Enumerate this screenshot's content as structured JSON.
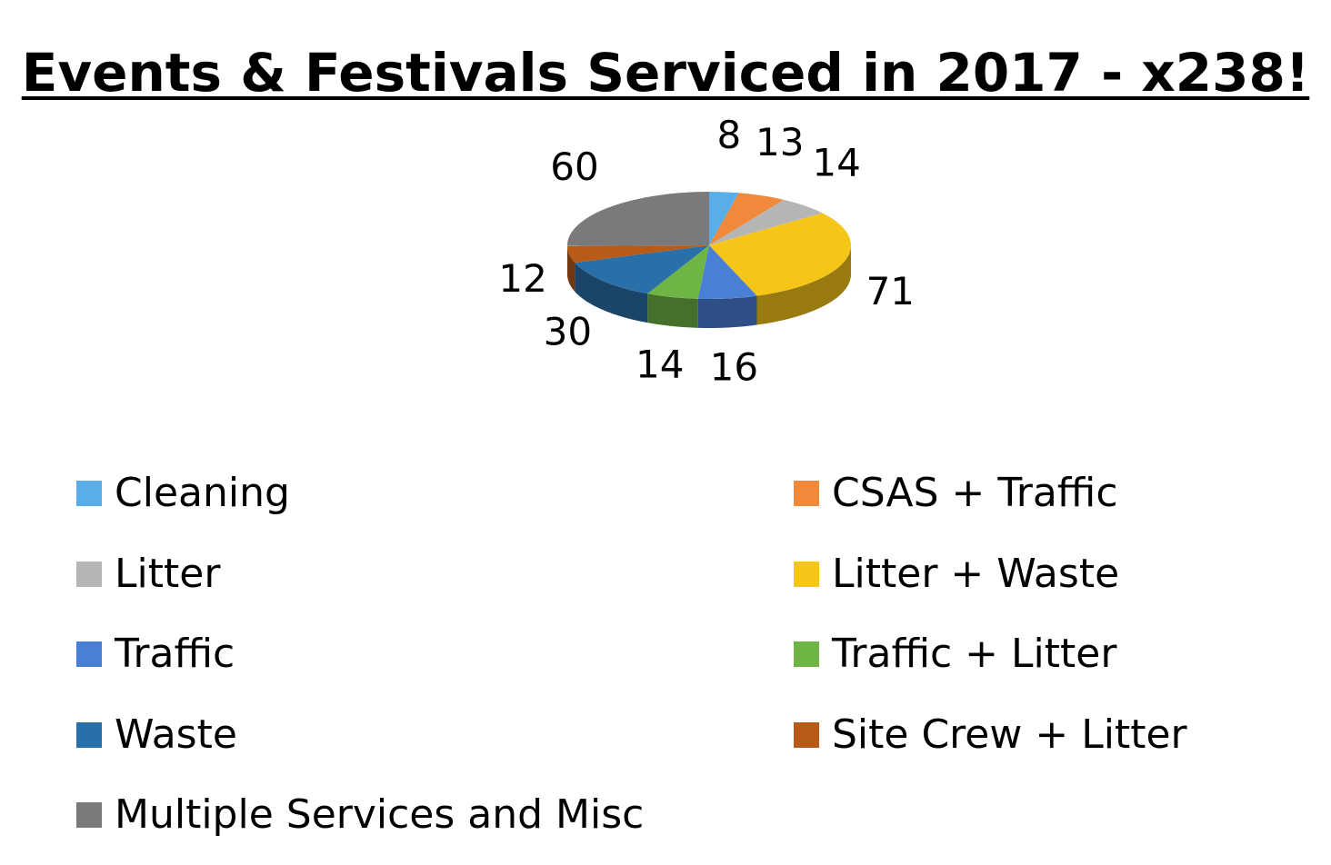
{
  "chart_data": {
    "type": "pie",
    "title": "Events & Festivals Serviced in 2017 - x238!",
    "categories": [
      "Cleaning",
      "CSAS + Traffic",
      "Litter",
      "Litter + Waste",
      "Traffic",
      "Traffic + Litter",
      "Waste",
      "Site Crew + Litter",
      "Multiple Services and Misc"
    ],
    "values": [
      8,
      13,
      14,
      71,
      16,
      14,
      30,
      12,
      60
    ],
    "labels": [
      "8",
      "13",
      "14",
      "71",
      "16",
      "14",
      "30",
      "12",
      "60"
    ],
    "colors": [
      "#5aaee8",
      "#f0893c",
      "#b5b5b5",
      "#f5c518",
      "#4a7fd6",
      "#6fb545",
      "#2a70a8",
      "#b85a18",
      "#7a7a7a"
    ],
    "style": "3d",
    "legend": "bottom",
    "grid": false
  }
}
